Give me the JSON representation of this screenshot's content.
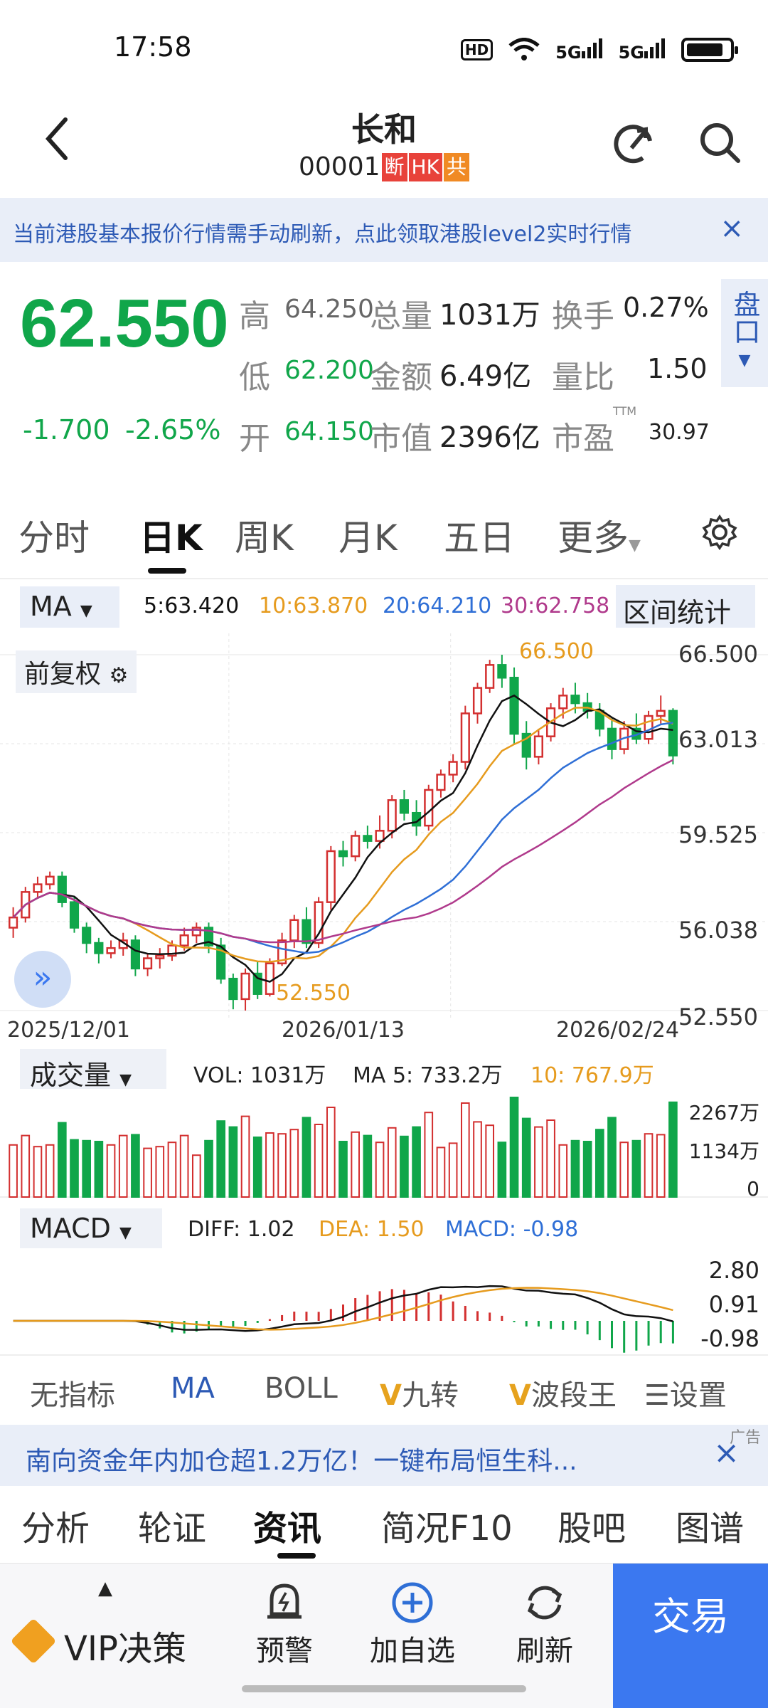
{
  "status": {
    "time": "17:58",
    "hd": "HD",
    "net1": "5G",
    "net2": "5G"
  },
  "header": {
    "title": "长和",
    "code": "00001",
    "tags": [
      "断",
      "HK",
      "共"
    ]
  },
  "notice": {
    "text": "当前港股基本报价行情需手动刷新，点此领取港股level2实时行情",
    "close": "×"
  },
  "quote": {
    "price": "62.550",
    "change": "-1.700",
    "change_pct": "-2.65%",
    "high_label": "高",
    "high": "64.250",
    "low_label": "低",
    "low": "62.200",
    "open_label": "开",
    "open": "64.150",
    "vol_label": "总量",
    "vol": "1031万",
    "amount_label": "金额",
    "amount": "6.49亿",
    "mktcap_label": "市值",
    "mktcap": "2396亿",
    "turnover_label": "换手",
    "turnover": "0.27%",
    "vol_ratio_label": "量比",
    "vol_ratio": "1.50",
    "pe_label": "市盈",
    "pe_sup": "TTM",
    "pe": "30.97",
    "pankou": "盘口"
  },
  "period_tabs": [
    "分时",
    "日K",
    "周K",
    "月K",
    "五日",
    "更多"
  ],
  "ma": {
    "select": "MA",
    "ma5": "5:63.420",
    "ma10": "10:63.870",
    "ma20": "20:64.210",
    "ma30": "30:62.758",
    "range_stats": "区间统计"
  },
  "chart": {
    "adjust": "前复权",
    "y_ticks": [
      "66.500",
      "63.013",
      "59.525",
      "56.038",
      "52.550"
    ],
    "x_ticks": [
      "2025/12/01",
      "2026/01/13",
      "2026/02/24"
    ],
    "max_label": "66.500",
    "min_label": "52.550"
  },
  "volume": {
    "select": "成交量",
    "vol": "VOL: 1031万",
    "ma5": "MA 5: 733.2万",
    "ma10": "10: 767.9万",
    "y_ticks": [
      "2267万",
      "1134万",
      "0"
    ]
  },
  "macd": {
    "select": "MACD",
    "diff": "DIFF: 1.02",
    "dea": "DEA: 1.50",
    "macd": "MACD: -0.98",
    "y_ticks": [
      "2.80",
      "0.91",
      "-0.98"
    ]
  },
  "indicator_tabs": [
    "无指标",
    "MA",
    "BOLL",
    "九转",
    "波段王",
    "设置"
  ],
  "ad": {
    "text": "南向资金年内加仓超1.2万亿！一键布局恒生科...",
    "tag": "广告",
    "close": "×"
  },
  "content_tabs": [
    "分析",
    "轮证",
    "资讯",
    "简况F10",
    "股吧",
    "图谱"
  ],
  "bottom_bar": {
    "vip": "VIP决策",
    "alert": "预警",
    "add": "加自选",
    "refresh": "刷新",
    "trade": "交易"
  },
  "colors": {
    "up": "#d32f2f",
    "down": "#10a64a",
    "accent": "#2d5ab5",
    "ma5": "#111111",
    "ma10": "#e69b1e",
    "ma20": "#2f6fd6",
    "ma30": "#b03a8c"
  },
  "chart_data": {
    "type": "candlestick",
    "x_range": [
      "2025/12/01",
      "2026/02/24"
    ],
    "ylim": [
      52.55,
      66.5
    ],
    "candles_ohlc_approx": [
      [
        55.8,
        56.6,
        55.4,
        56.2
      ],
      [
        56.2,
        57.4,
        56.0,
        57.2
      ],
      [
        57.2,
        57.8,
        57.0,
        57.5
      ],
      [
        57.5,
        58.0,
        57.3,
        57.8
      ],
      [
        57.8,
        58.0,
        56.6,
        56.8
      ],
      [
        56.8,
        57.0,
        55.6,
        55.8
      ],
      [
        55.8,
        56.0,
        54.8,
        55.2
      ],
      [
        55.2,
        55.4,
        54.4,
        54.8
      ],
      [
        54.8,
        55.3,
        54.6,
        55.0
      ],
      [
        55.0,
        55.6,
        54.7,
        55.3
      ],
      [
        55.3,
        55.5,
        53.9,
        54.2
      ],
      [
        54.2,
        54.8,
        53.9,
        54.6
      ],
      [
        54.6,
        55.0,
        54.2,
        54.7
      ],
      [
        54.7,
        55.3,
        54.5,
        55.1
      ],
      [
        55.1,
        55.8,
        54.9,
        55.5
      ],
      [
        55.5,
        56.0,
        55.2,
        55.8
      ],
      [
        55.8,
        56.0,
        54.8,
        55.1
      ],
      [
        55.1,
        55.4,
        53.6,
        53.8
      ],
      [
        53.8,
        54.0,
        52.6,
        53.0
      ],
      [
        53.0,
        54.2,
        52.55,
        54.0
      ],
      [
        54.0,
        54.5,
        53.0,
        53.2
      ],
      [
        53.2,
        54.6,
        53.1,
        54.4
      ],
      [
        54.4,
        55.6,
        54.3,
        55.3
      ],
      [
        55.3,
        56.3,
        55.0,
        56.1
      ],
      [
        56.1,
        56.6,
        55.0,
        55.2
      ],
      [
        55.2,
        57.0,
        55.0,
        56.8
      ],
      [
        56.8,
        59.0,
        56.5,
        58.8
      ],
      [
        58.8,
        59.2,
        58.2,
        58.6
      ],
      [
        58.6,
        59.6,
        58.4,
        59.4
      ],
      [
        59.4,
        59.8,
        58.9,
        59.2
      ],
      [
        59.2,
        60.2,
        58.9,
        59.6
      ],
      [
        59.6,
        61.0,
        59.3,
        60.8
      ],
      [
        60.8,
        61.2,
        60.0,
        60.3
      ],
      [
        60.3,
        60.8,
        59.4,
        59.8
      ],
      [
        59.8,
        61.4,
        59.6,
        61.2
      ],
      [
        61.2,
        62.0,
        60.9,
        61.8
      ],
      [
        61.8,
        62.6,
        61.5,
        62.3
      ],
      [
        62.3,
        64.5,
        62.0,
        64.2
      ],
      [
        64.2,
        65.4,
        63.8,
        65.2
      ],
      [
        65.2,
        66.3,
        65.0,
        66.1
      ],
      [
        66.1,
        66.5,
        65.2,
        65.6
      ],
      [
        65.6,
        66.0,
        63.0,
        63.4
      ],
      [
        63.4,
        63.9,
        62.0,
        62.5
      ],
      [
        62.5,
        63.6,
        62.2,
        63.3
      ],
      [
        63.3,
        64.6,
        63.1,
        64.4
      ],
      [
        64.4,
        65.2,
        64.0,
        64.9
      ],
      [
        64.9,
        65.4,
        64.2,
        64.6
      ],
      [
        64.6,
        65.0,
        64.0,
        64.3
      ],
      [
        64.3,
        64.6,
        63.3,
        63.6
      ],
      [
        63.6,
        64.0,
        62.4,
        62.8
      ],
      [
        62.8,
        63.9,
        62.6,
        63.6
      ],
      [
        63.6,
        64.2,
        63.0,
        63.2
      ],
      [
        63.2,
        64.3,
        63.0,
        64.1
      ],
      [
        64.1,
        64.9,
        63.8,
        64.3
      ],
      [
        64.3,
        64.4,
        62.2,
        62.55
      ]
    ]
  }
}
